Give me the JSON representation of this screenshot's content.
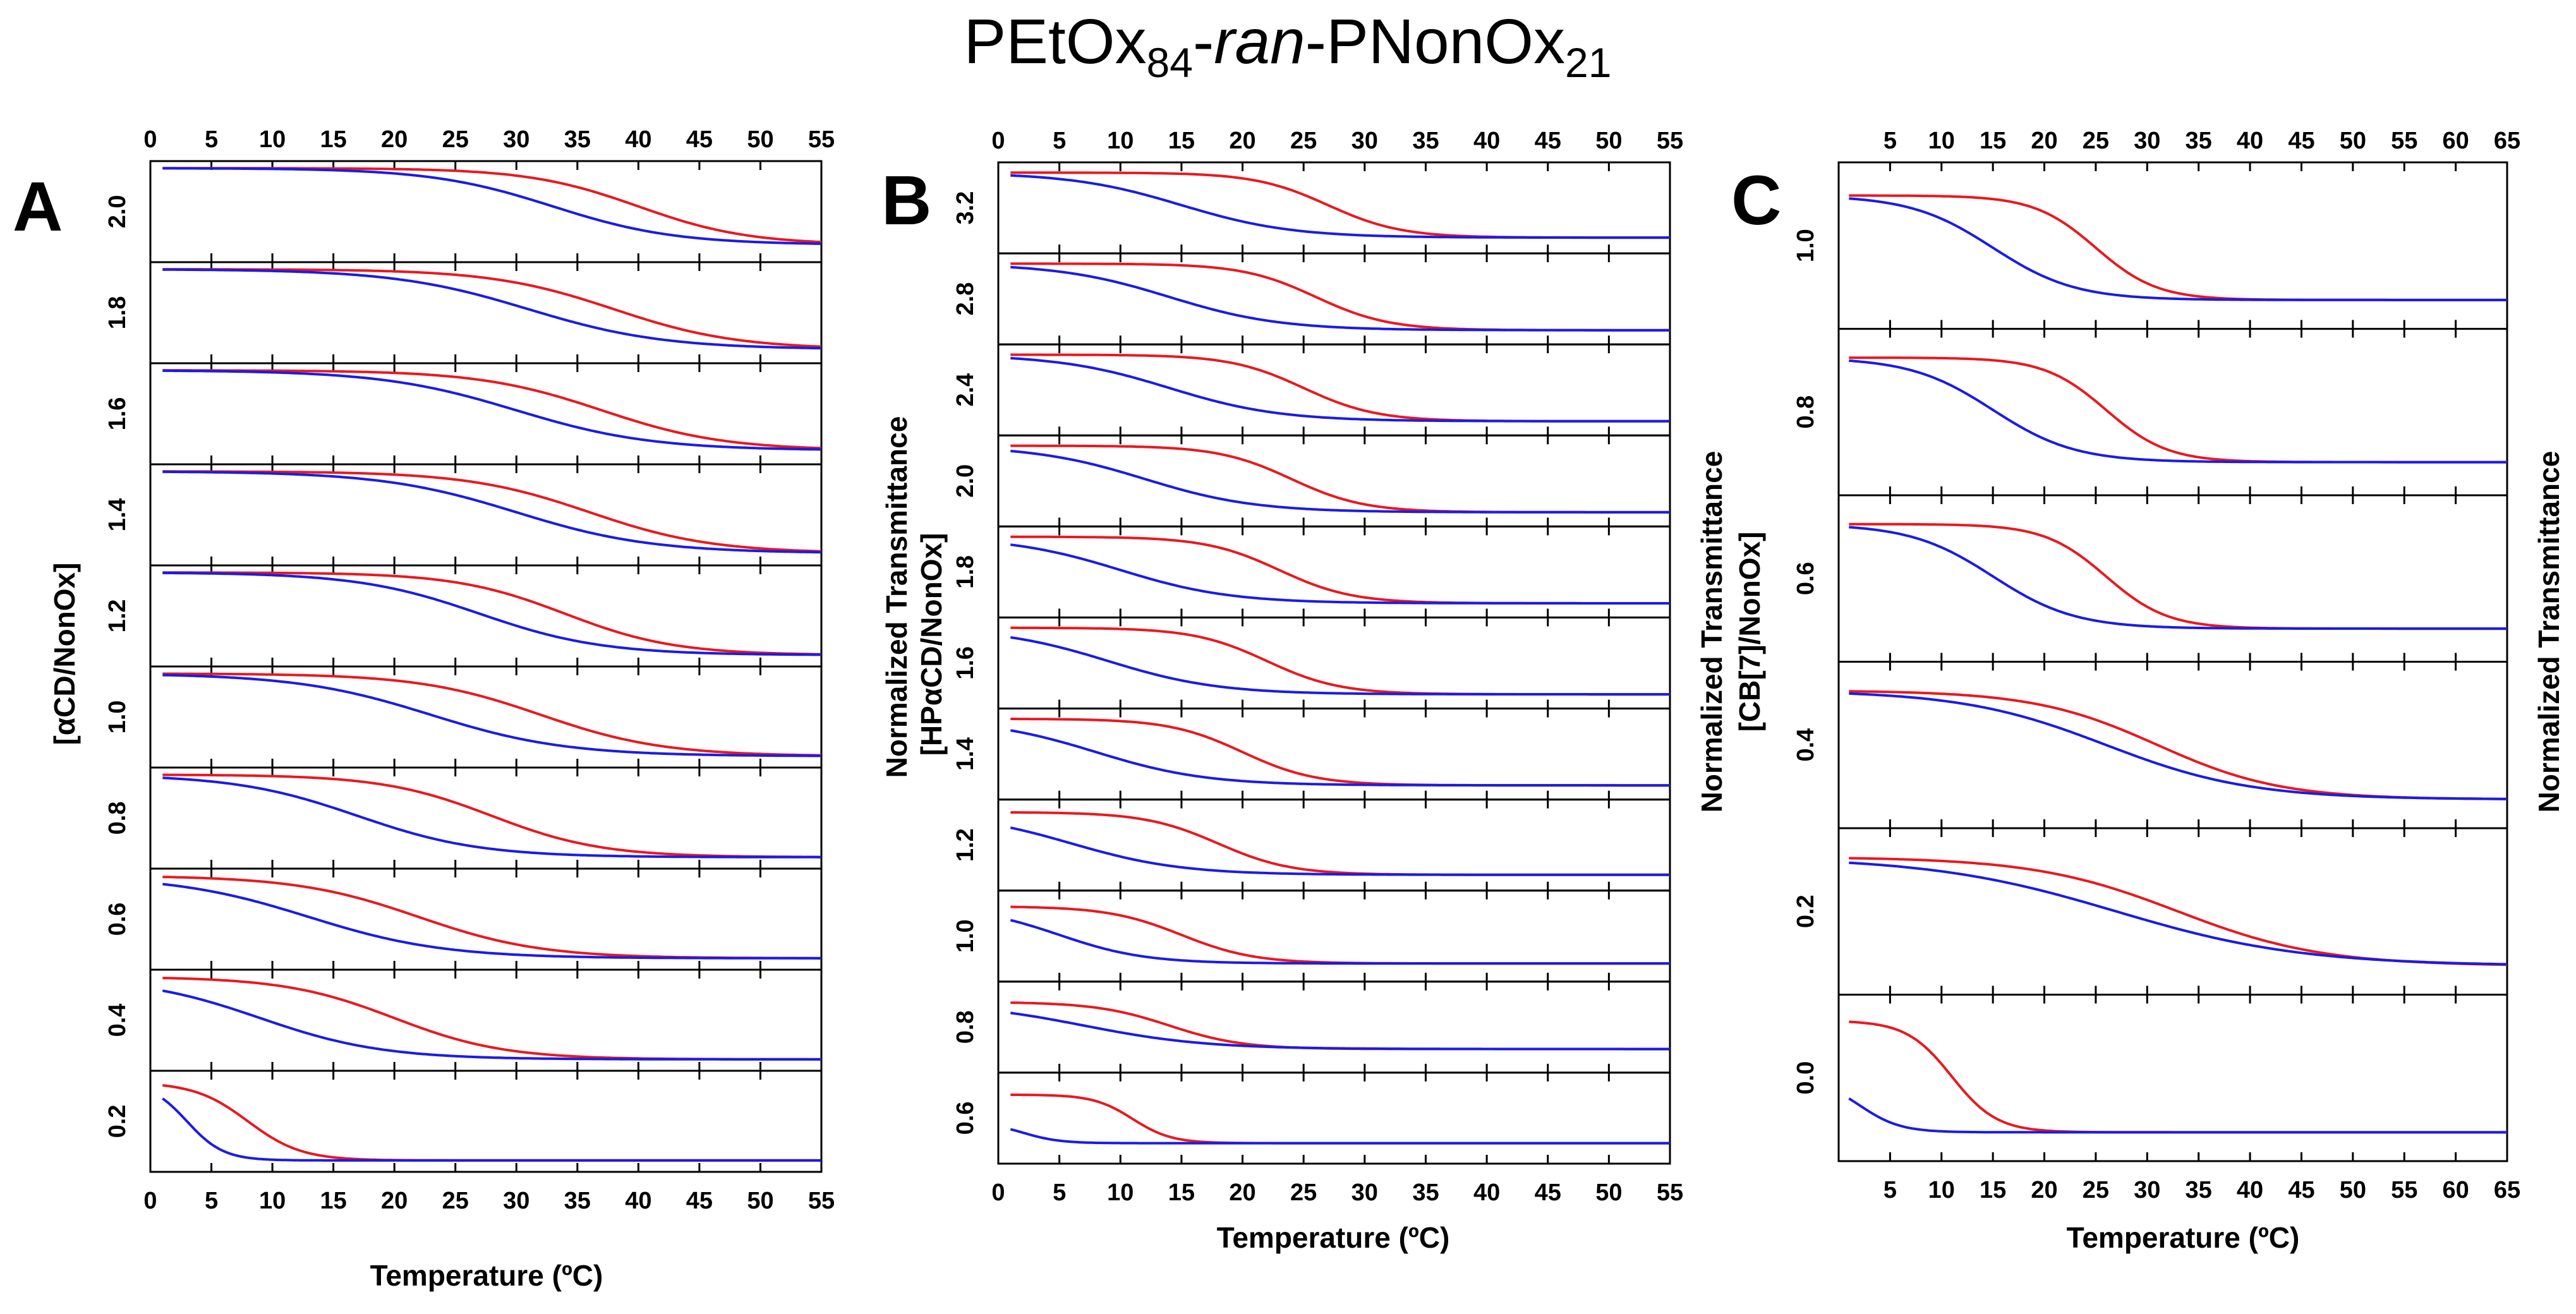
{
  "title": {
    "main": "PEtOx",
    "sub1": "84",
    "mid": "-",
    "italic": "ran",
    "mid2": "-PNonOx",
    "sub2": "21"
  },
  "colors": {
    "heating": "#e8191f",
    "cooling": "#1b1be6"
  },
  "chart_data": [
    {
      "type": "line",
      "panel": "A",
      "xlabel": "Temperature (ºC)",
      "ylabel": "[αCD/NonOx]",
      "right_label": "Normalized Transmittance",
      "xlim": [
        0,
        55
      ],
      "xticks": [
        0,
        5,
        10,
        15,
        20,
        25,
        30,
        35,
        40,
        45,
        50,
        55
      ],
      "ratios": [
        "2.0",
        "1.8",
        "1.6",
        "1.4",
        "1.2",
        "1.0",
        "0.8",
        "0.6",
        "0.4",
        "0.2"
      ],
      "traces": [
        {
          "ratio": "2.0",
          "red": {
            "start": 1,
            "end": 0.12,
            "mid": 40,
            "w": 4.5
          },
          "blue": {
            "start": 1,
            "end": 0.12,
            "mid": 33,
            "w": 5
          }
        },
        {
          "ratio": "1.8",
          "red": {
            "start": 1,
            "end": 0.08,
            "mid": 38,
            "w": 5
          },
          "blue": {
            "start": 1,
            "end": 0.08,
            "mid": 31,
            "w": 5.5
          }
        },
        {
          "ratio": "1.6",
          "red": {
            "start": 1,
            "end": 0.08,
            "mid": 37,
            "w": 5
          },
          "blue": {
            "start": 1,
            "end": 0.08,
            "mid": 30,
            "w": 5.5
          }
        },
        {
          "ratio": "1.4",
          "red": {
            "start": 1,
            "end": 0.06,
            "mid": 36,
            "w": 5
          },
          "blue": {
            "start": 1,
            "end": 0.06,
            "mid": 30,
            "w": 5.5
          }
        },
        {
          "ratio": "1.2",
          "red": {
            "start": 1,
            "end": 0.05,
            "mid": 34,
            "w": 4.5
          },
          "blue": {
            "start": 1,
            "end": 0.05,
            "mid": 27,
            "w": 5
          }
        },
        {
          "ratio": "1.0",
          "red": {
            "start": 1,
            "end": 0.05,
            "mid": 32,
            "w": 5
          },
          "blue": {
            "start": 1,
            "end": 0.05,
            "mid": 23,
            "w": 5.5
          }
        },
        {
          "ratio": "0.8",
          "red": {
            "start": 1,
            "end": 0.05,
            "mid": 28,
            "w": 4.5
          },
          "blue": {
            "start": 1,
            "end": 0.05,
            "mid": 17,
            "w": 5
          }
        },
        {
          "ratio": "0.6",
          "red": {
            "start": 1,
            "end": 0.05,
            "mid": 22,
            "w": 5
          },
          "blue": {
            "start": 1,
            "end": 0.05,
            "mid": 13,
            "w": 5.5
          }
        },
        {
          "ratio": "0.4",
          "red": {
            "start": 1,
            "end": 0.05,
            "mid": 20,
            "w": 4.5
          },
          "blue": {
            "start": 1,
            "end": 0.05,
            "mid": 9,
            "w": 5
          }
        },
        {
          "ratio": "0.2",
          "red": {
            "start": 0.95,
            "end": 0.05,
            "mid": 8,
            "w": 2.2
          },
          "blue": {
            "start": 0.95,
            "end": 0.05,
            "mid": 3,
            "w": 1.5
          }
        }
      ]
    },
    {
      "type": "line",
      "panel": "B",
      "xlabel": "Temperature (ºC)",
      "ylabel": "[HPαCD/NonOx]",
      "right_label": "Normalized Transmittance",
      "xlim": [
        0,
        55
      ],
      "xticks": [
        0,
        5,
        10,
        15,
        20,
        25,
        30,
        35,
        40,
        45,
        50,
        55
      ],
      "ratios": [
        "3.2",
        "2.8",
        "2.4",
        "2.0",
        "1.8",
        "1.6",
        "1.4",
        "1.2",
        "1.0",
        "0.8",
        "0.6"
      ],
      "traces": [
        {
          "ratio": "3.2",
          "red": {
            "start": 0.95,
            "end": 0.12,
            "mid": 27,
            "w": 3
          },
          "blue": {
            "start": 0.95,
            "end": 0.12,
            "mid": 15,
            "w": 4.5
          }
        },
        {
          "ratio": "2.8",
          "red": {
            "start": 0.95,
            "end": 0.1,
            "mid": 26,
            "w": 3
          },
          "blue": {
            "start": 0.95,
            "end": 0.1,
            "mid": 14,
            "w": 4.5
          }
        },
        {
          "ratio": "2.4",
          "red": {
            "start": 0.95,
            "end": 0.1,
            "mid": 25,
            "w": 3
          },
          "blue": {
            "start": 0.95,
            "end": 0.1,
            "mid": 14,
            "w": 4.5
          }
        },
        {
          "ratio": "2.0",
          "red": {
            "start": 0.95,
            "end": 0.1,
            "mid": 24,
            "w": 3
          },
          "blue": {
            "start": 0.95,
            "end": 0.1,
            "mid": 12,
            "w": 4.5
          }
        },
        {
          "ratio": "1.8",
          "red": {
            "start": 0.95,
            "end": 0.1,
            "mid": 23,
            "w": 3
          },
          "blue": {
            "start": 0.95,
            "end": 0.1,
            "mid": 10,
            "w": 4.5
          }
        },
        {
          "ratio": "1.6",
          "red": {
            "start": 0.95,
            "end": 0.1,
            "mid": 22,
            "w": 3
          },
          "blue": {
            "start": 0.95,
            "end": 0.1,
            "mid": 9,
            "w": 4.5
          }
        },
        {
          "ratio": "1.4",
          "red": {
            "start": 0.95,
            "end": 0.1,
            "mid": 20,
            "w": 3
          },
          "blue": {
            "start": 0.95,
            "end": 0.1,
            "mid": 8,
            "w": 4.5
          }
        },
        {
          "ratio": "1.2",
          "red": {
            "start": 0.92,
            "end": 0.12,
            "mid": 18,
            "w": 3
          },
          "blue": {
            "start": 0.92,
            "end": 0.12,
            "mid": 6,
            "w": 4.5
          }
        },
        {
          "ratio": "1.0",
          "red": {
            "start": 0.88,
            "end": 0.15,
            "mid": 15,
            "w": 3
          },
          "blue": {
            "start": 0.88,
            "end": 0.15,
            "mid": 5,
            "w": 3.5
          }
        },
        {
          "ratio": "0.8",
          "red": {
            "start": 0.82,
            "end": 0.22,
            "mid": 14,
            "w": 3
          },
          "blue": {
            "start": 0.82,
            "end": 0.22,
            "mid": 7,
            "w": 5
          }
        },
        {
          "ratio": "0.6",
          "red": {
            "start": 0.8,
            "end": 0.18,
            "mid": 11,
            "w": 1.6
          },
          "blue": {
            "start": 0.45,
            "end": 0.18,
            "mid": 2,
            "w": 1.5
          }
        }
      ]
    },
    {
      "type": "line",
      "panel": "C",
      "xlabel": "Temperature (ºC)",
      "ylabel": "[CB[7]/NonOx]",
      "right_label": "Normalized Transmittance",
      "xlim": [
        0,
        65
      ],
      "xticks": [
        5,
        10,
        15,
        20,
        25,
        30,
        35,
        40,
        45,
        50,
        55,
        60,
        65
      ],
      "ratios": [
        "1.0",
        "0.8",
        "0.6",
        "0.4",
        "0.2",
        "0.0"
      ],
      "traces": [
        {
          "ratio": "1.0",
          "red": {
            "start": 0.85,
            "end": 0.12,
            "mid": 25,
            "w": 3
          },
          "blue": {
            "start": 0.85,
            "end": 0.12,
            "mid": 15,
            "w": 4
          }
        },
        {
          "ratio": "0.8",
          "red": {
            "start": 0.88,
            "end": 0.15,
            "mid": 26,
            "w": 3
          },
          "blue": {
            "start": 0.88,
            "end": 0.15,
            "mid": 15,
            "w": 4
          }
        },
        {
          "ratio": "0.6",
          "red": {
            "start": 0.88,
            "end": 0.15,
            "mid": 26,
            "w": 3
          },
          "blue": {
            "start": 0.88,
            "end": 0.15,
            "mid": 15,
            "w": 4
          }
        },
        {
          "ratio": "0.4",
          "red": {
            "start": 0.88,
            "end": 0.12,
            "mid": 31,
            "w": 6
          },
          "blue": {
            "start": 0.88,
            "end": 0.12,
            "mid": 26,
            "w": 7
          }
        },
        {
          "ratio": "0.2",
          "red": {
            "start": 0.88,
            "end": 0.12,
            "mid": 33,
            "w": 7
          },
          "blue": {
            "start": 0.88,
            "end": 0.12,
            "mid": 27,
            "w": 9
          }
        },
        {
          "ratio": "0.0",
          "red": {
            "start": 0.9,
            "end": 0.12,
            "mid": 11,
            "w": 2.2
          },
          "blue": {
            "start": 0.5,
            "end": 0.12,
            "mid": 2,
            "w": 2
          }
        }
      ]
    }
  ]
}
